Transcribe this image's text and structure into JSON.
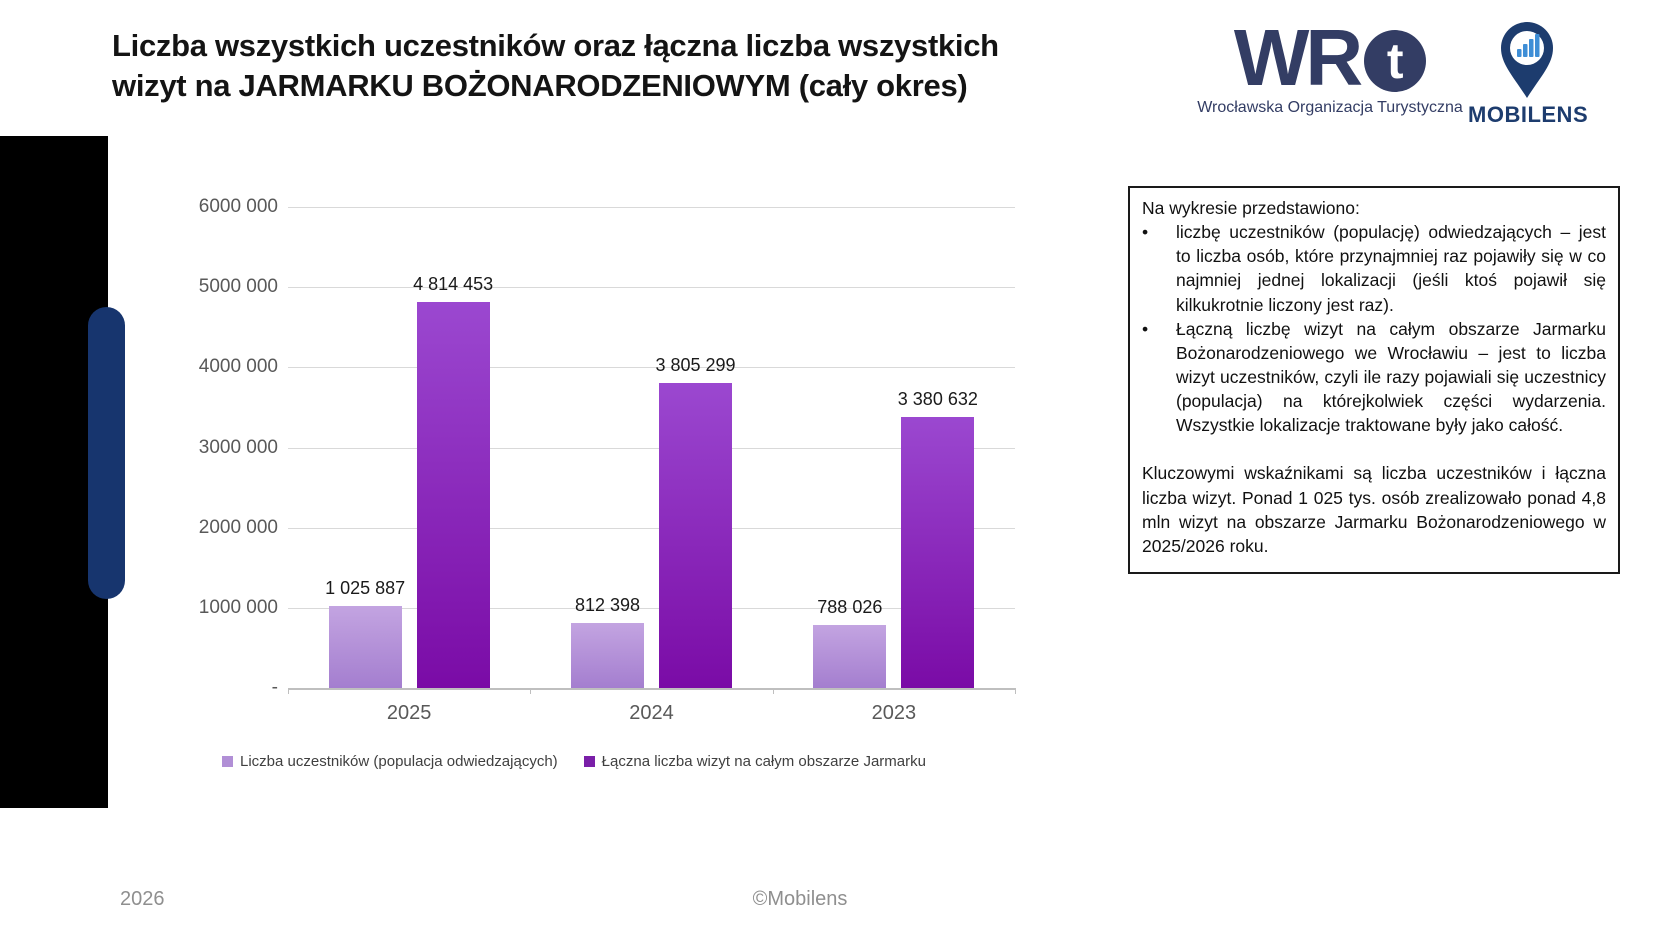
{
  "title": {
    "line1": "Liczba wszystkich uczestników oraz łączna liczba wszystkich",
    "line2": "wizyt na JARMARKU BOŻONARODZENIOWYM (cały okres)"
  },
  "logos": {
    "wrt": {
      "text_main": "WR",
      "text_circle": "t",
      "tagline": "Wrocławska Organizacja Turystyczna",
      "color": "#333d64"
    },
    "mobilens": {
      "name": "MOBILENS",
      "pin_color": "#1d3c6e",
      "bars_color": "#3e8ed6"
    }
  },
  "chart_data": {
    "type": "bar",
    "categories": [
      "2025",
      "2024",
      "2023"
    ],
    "series": [
      {
        "name": "Liczba  uczestników (populacja odwiedzających)",
        "values": [
          1025887,
          812398,
          788026
        ],
        "color_top": "#c3a4e1",
        "color_bottom": "#a47ecf",
        "legend_color": "#b18fd6"
      },
      {
        "name": "Łączna liczba wizyt na całym obszarze Jarmarku",
        "values": [
          4814453,
          3805299,
          3380632
        ],
        "color_top": "#9b48d0",
        "color_bottom": "#7a0ba6",
        "legend_color": "#7a1fa8"
      }
    ],
    "data_labels": [
      [
        "1 025 887",
        "812 398",
        "788 026"
      ],
      [
        "4 814 453",
        "3 805 299",
        "3 380 632"
      ]
    ],
    "y_ticks": [
      "6000 000",
      "5000 000",
      "4000 000",
      "3000 000",
      "2000 000",
      "1000 000",
      "-"
    ],
    "ylim": [
      0,
      6000000
    ],
    "grid": true,
    "legend_position": "bottom",
    "title": "",
    "xlabel": "",
    "ylabel": ""
  },
  "textbox": {
    "intro": "Na wykresie przedstawiono:",
    "bullet_marker": "•",
    "bullets": [
      "liczbę uczestników (populację) odwiedzających – jest to liczba osób, które przynajmniej raz pojawiły się w co najmniej jednej lokalizacji (jeśli ktoś pojawił się kilkukrotnie liczony jest raz).",
      "Łączną liczbę wizyt na całym obszarze Jarmarku Bożonarodzeniowego we Wrocławiu – jest to liczba wizyt uczestników, czyli ile razy pojawiali się uczestnicy (populacja) na którejkolwiek części wydarzenia. Wszystkie lokalizacje traktowane były jako całość."
    ],
    "paragraph": "Kluczowymi wskaźnikami są liczba uczestników i łączna liczba wizyt. Ponad 1 025 tys. osób zrealizowało ponad 4,8 mln wizyt na obszarze Jarmarku Bożonarodzeniowego w 2025/2026 roku."
  },
  "footer": {
    "year": "2026",
    "copyright": "©Mobilens"
  }
}
